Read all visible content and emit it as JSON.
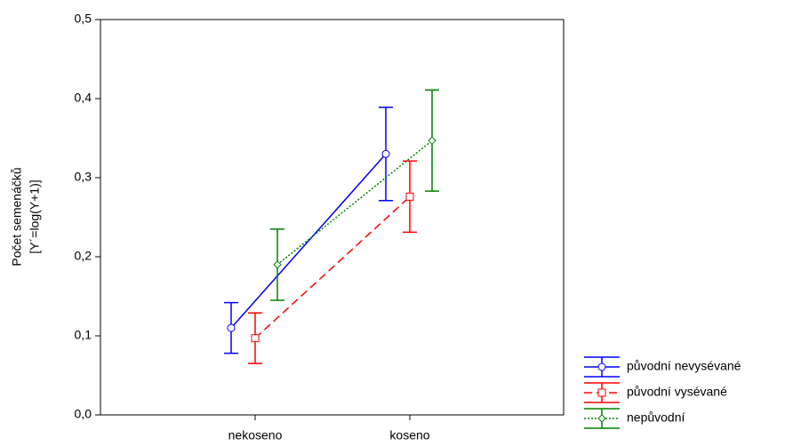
{
  "chart_data": {
    "type": "line",
    "y_label_lines": [
      "Počet semenáčků",
      "[Y´=log(Y+1)]"
    ],
    "categories": [
      "nekoseno",
      "koseno"
    ],
    "series": [
      {
        "name": "původní nevysévané",
        "color": "#0000ff",
        "linestyle": "solid",
        "marker": "circle",
        "values": [
          0.11,
          0.33
        ],
        "errors": [
          0.032,
          0.059
        ]
      },
      {
        "name": "původní vysévané",
        "color": "#ff0000",
        "linestyle": "dashed",
        "marker": "square",
        "values": [
          0.097,
          0.276
        ],
        "errors": [
          0.032,
          0.045
        ]
      },
      {
        "name": "nepůvodní",
        "color": "#008000",
        "linestyle": "dotted",
        "marker": "diamond",
        "values": [
          0.19,
          0.347
        ],
        "errors": [
          0.045,
          0.064
        ]
      }
    ],
    "ylim": [
      0,
      0.5
    ],
    "yticks": [
      {
        "value": 0,
        "label": "0,0"
      },
      {
        "value": 0.1,
        "label": "0,1"
      },
      {
        "value": 0.2,
        "label": "0,2"
      },
      {
        "value": 0.3,
        "label": "0,3"
      },
      {
        "value": 0.4,
        "label": "0,4"
      },
      {
        "value": 0.5,
        "label": "0,5"
      }
    ]
  }
}
